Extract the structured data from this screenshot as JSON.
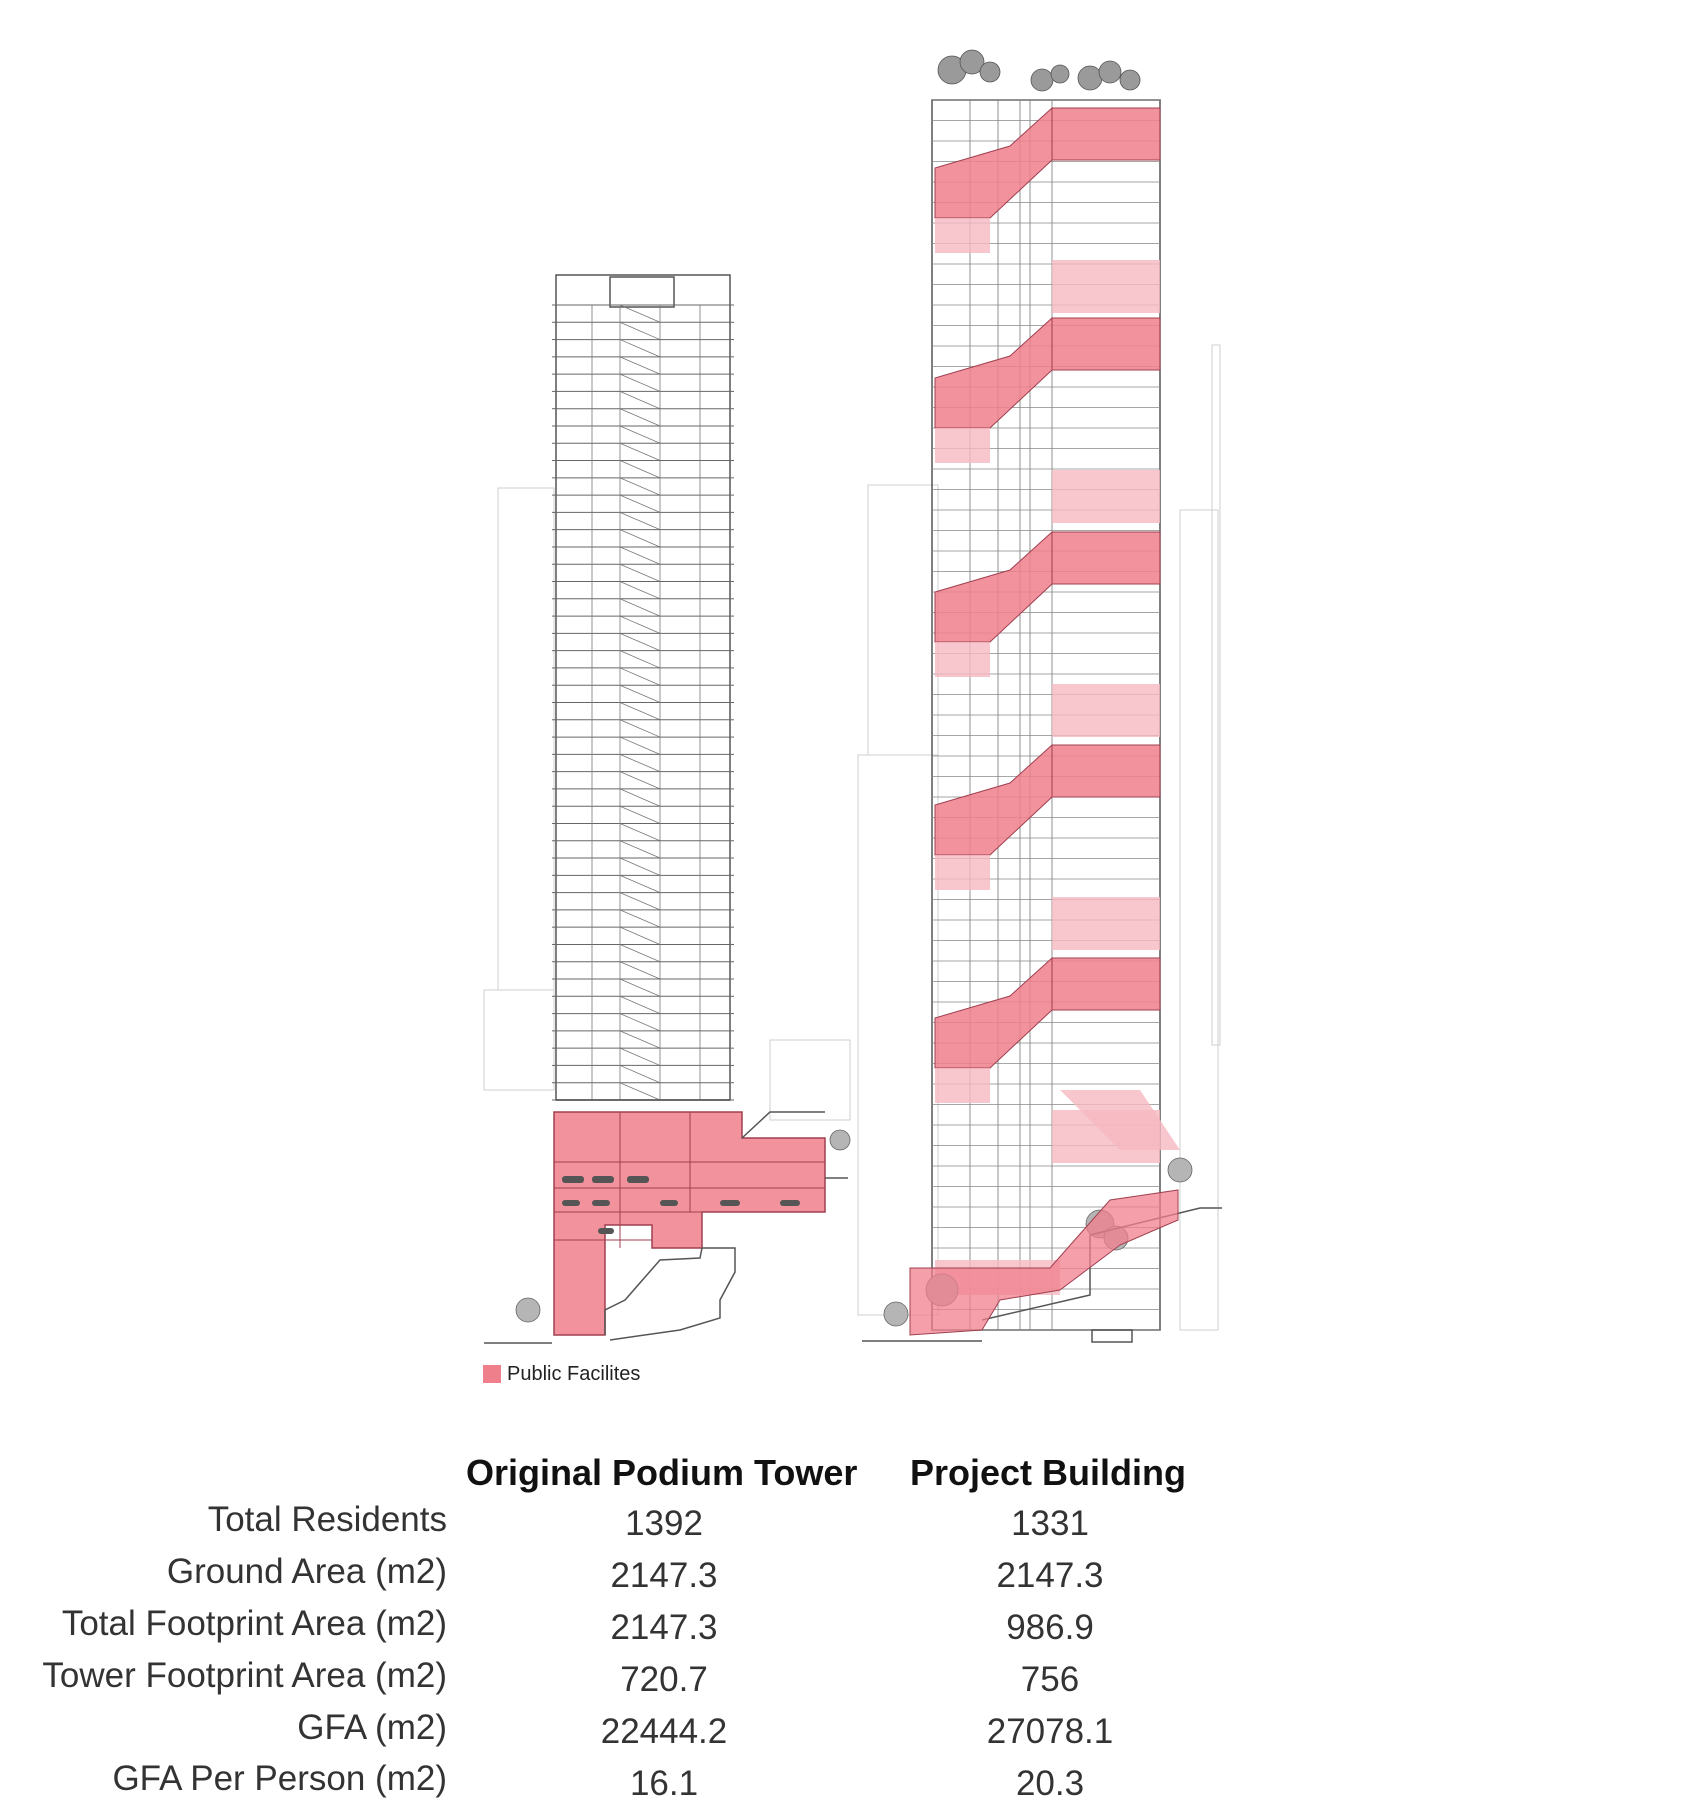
{
  "legend": {
    "label": "Public Facilites",
    "color": "#f07f8c"
  },
  "table": {
    "columns": [
      "Original Podium Tower",
      "Project Building"
    ],
    "rows": [
      {
        "label": "Total Residents",
        "values": [
          "1392",
          "1331"
        ]
      },
      {
        "label": "Ground Area (m2)",
        "values": [
          "2147.3",
          "2147.3"
        ]
      },
      {
        "label": "Total Footprint Area (m2)",
        "values": [
          "2147.3",
          "986.9"
        ]
      },
      {
        "label": "Tower Footprint Area (m2)",
        "values": [
          "720.7",
          "756"
        ]
      },
      {
        "label": "GFA (m2)",
        "values": [
          "22444.2",
          "27078.1"
        ]
      },
      {
        "label": "GFA Per Person (m2)",
        "values": [
          "16.1",
          "20.3"
        ]
      }
    ]
  },
  "colors": {
    "public": "#f07f8c",
    "public_light": "#f6b8c0",
    "line": "#555555",
    "faint": "#cfcfcf"
  }
}
